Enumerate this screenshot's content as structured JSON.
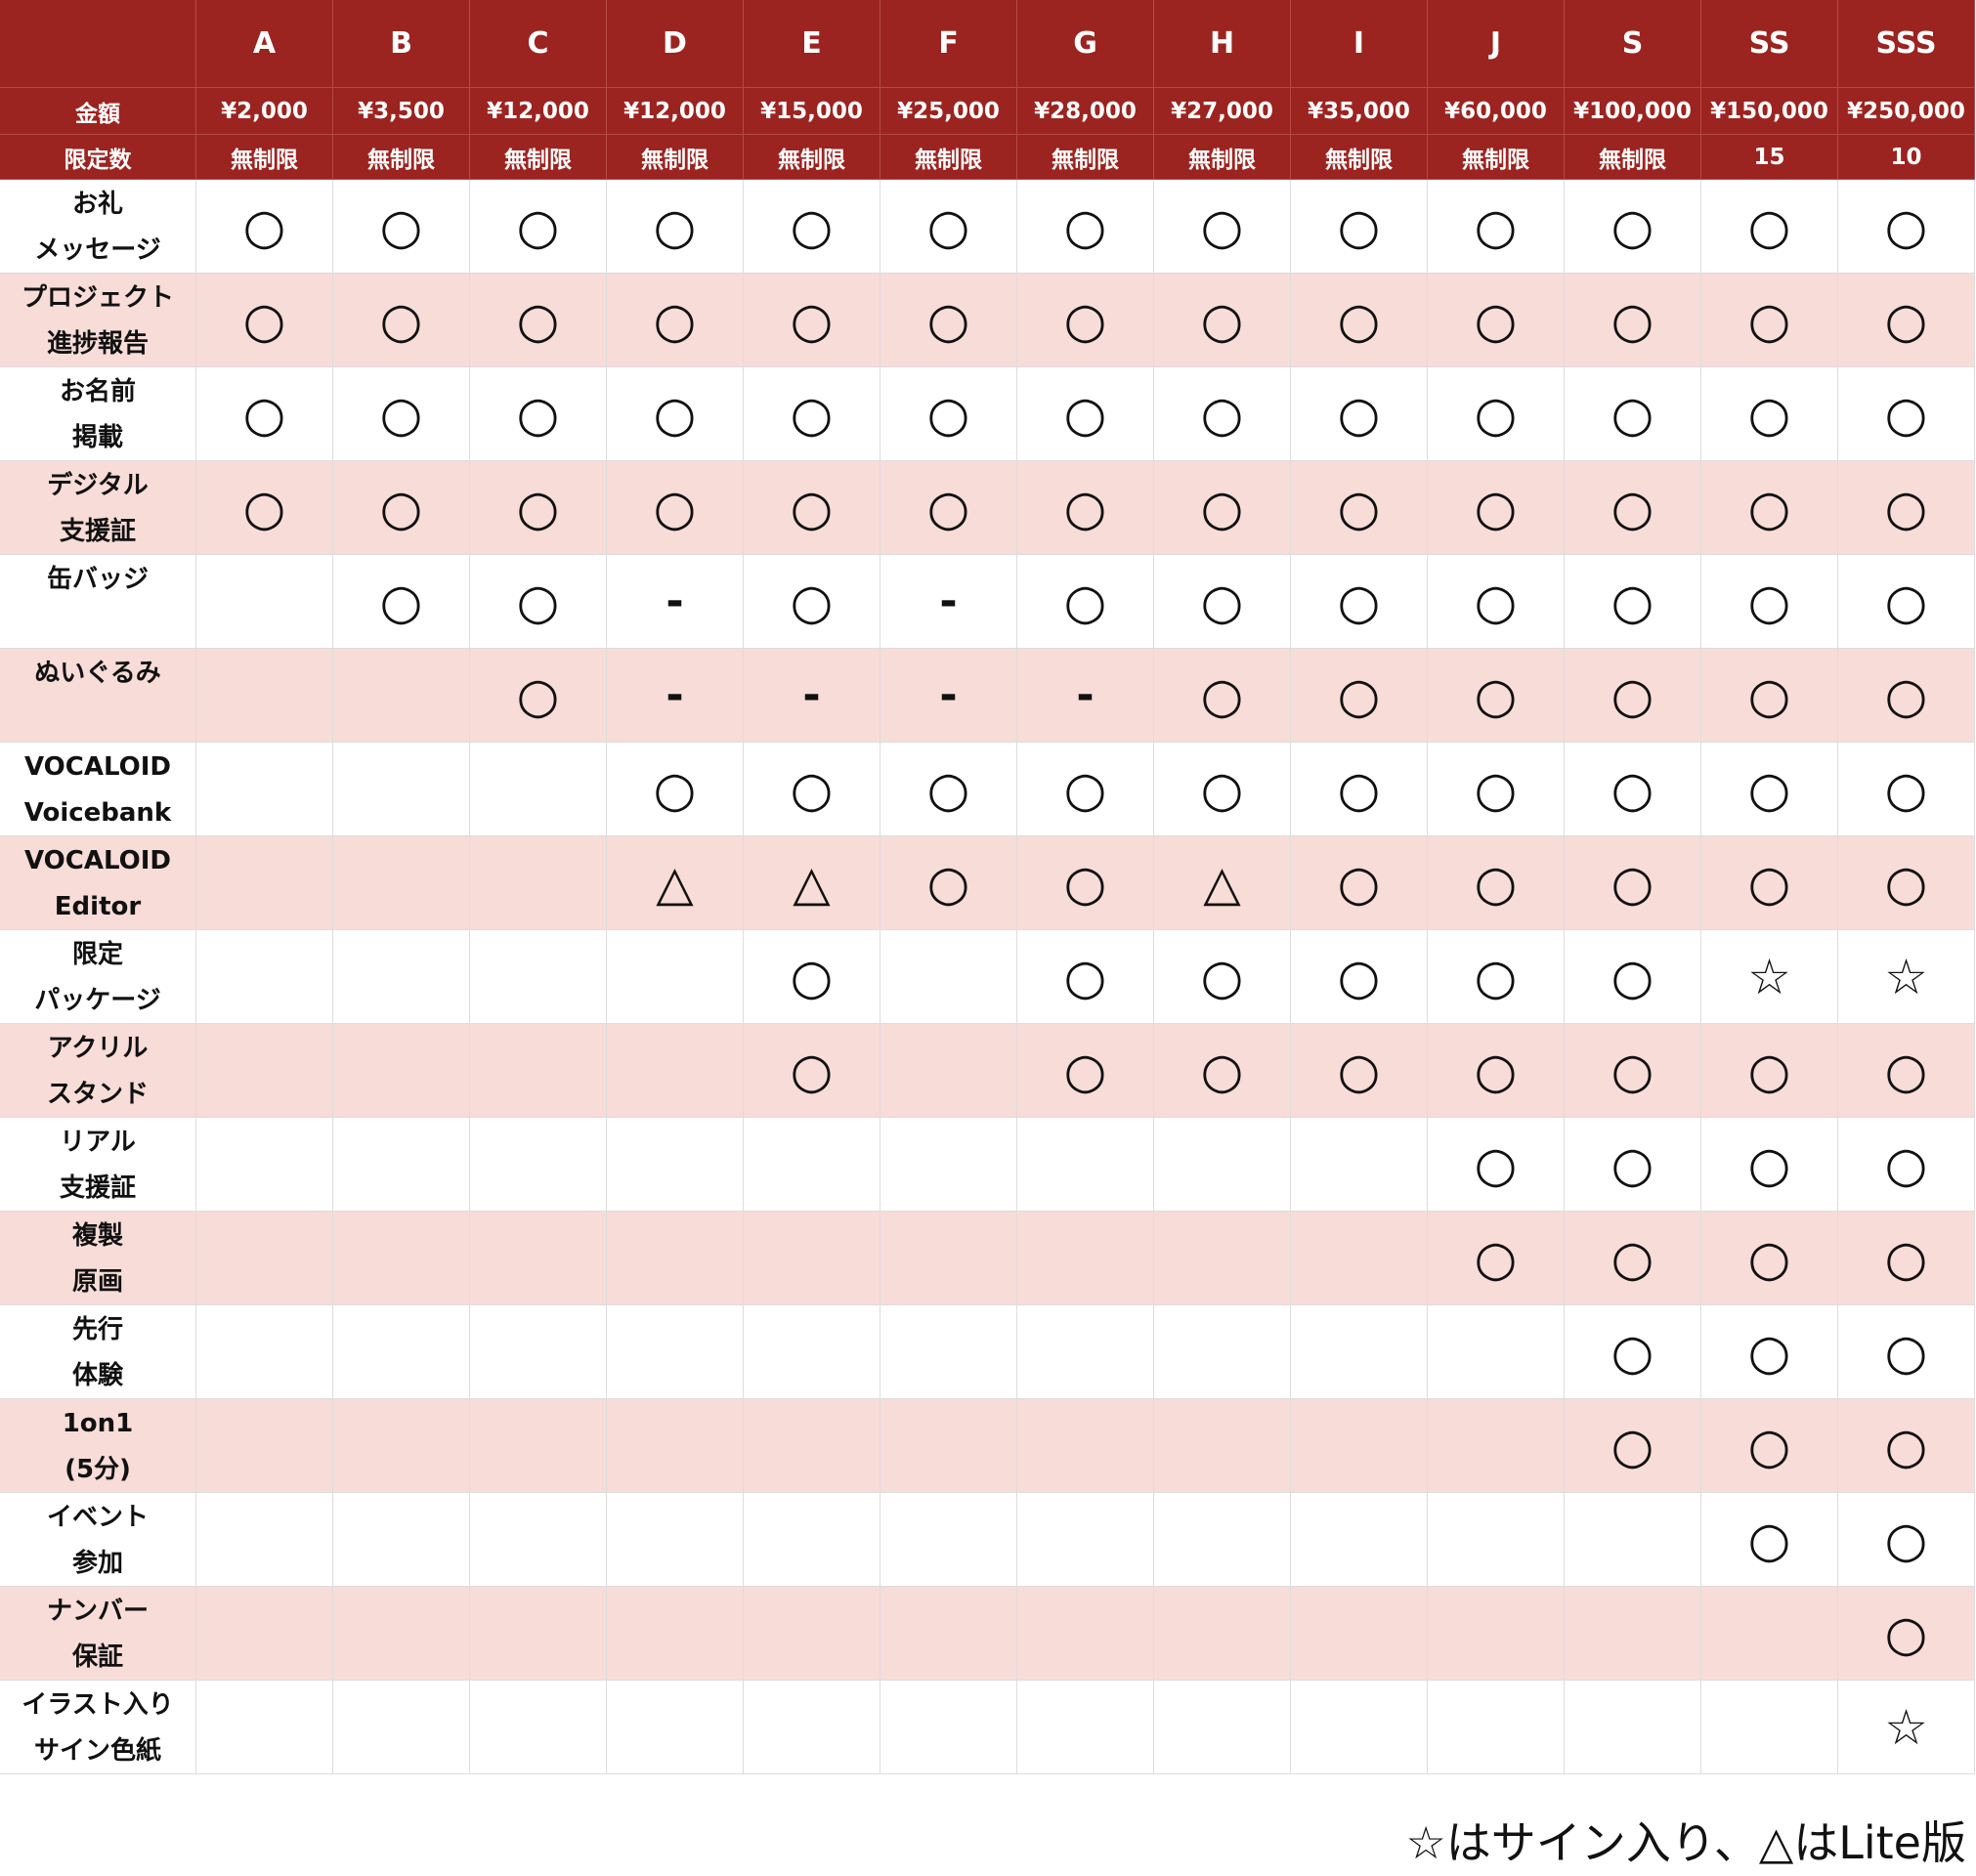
{
  "table": {
    "columns": [
      "A",
      "B",
      "C",
      "D",
      "E",
      "F",
      "G",
      "H",
      "I",
      "J",
      "S",
      "SS",
      "SSS"
    ],
    "price": {
      "label": "金額",
      "values": [
        "¥2,000",
        "¥3,500",
        "¥12,000",
        "¥12,000",
        "¥15,000",
        "¥25,000",
        "¥28,000",
        "¥27,000",
        "¥35,000",
        "¥60,000",
        "¥100,000",
        "¥150,000",
        "¥250,000"
      ]
    },
    "limit": {
      "label": "限定数",
      "values": [
        "無制限",
        "無制限",
        "無制限",
        "無制限",
        "無制限",
        "無制限",
        "無制限",
        "無制限",
        "無制限",
        "無制限",
        "無制限",
        "15",
        "10"
      ]
    },
    "rows": [
      {
        "label": [
          "お礼",
          "メッセージ"
        ],
        "cells": [
          "○",
          "○",
          "○",
          "○",
          "○",
          "○",
          "○",
          "○",
          "○",
          "○",
          "○",
          "○",
          "○"
        ]
      },
      {
        "label": [
          "プロジェクト",
          "進捗報告"
        ],
        "cells": [
          "○",
          "○",
          "○",
          "○",
          "○",
          "○",
          "○",
          "○",
          "○",
          "○",
          "○",
          "○",
          "○"
        ]
      },
      {
        "label": [
          "お名前",
          "掲載"
        ],
        "cells": [
          "○",
          "○",
          "○",
          "○",
          "○",
          "○",
          "○",
          "○",
          "○",
          "○",
          "○",
          "○",
          "○"
        ]
      },
      {
        "label": [
          "デジタル",
          "支援証"
        ],
        "cells": [
          "○",
          "○",
          "○",
          "○",
          "○",
          "○",
          "○",
          "○",
          "○",
          "○",
          "○",
          "○",
          "○"
        ]
      },
      {
        "label": [
          "缶バッジ"
        ],
        "cells": [
          null,
          "○",
          "○",
          "-",
          "○",
          "-",
          "○",
          "○",
          "○",
          "○",
          "○",
          "○",
          "○"
        ]
      },
      {
        "label": [
          "ぬいぐるみ"
        ],
        "cells": [
          null,
          null,
          "○",
          "-",
          "-",
          "-",
          "-",
          "○",
          "○",
          "○",
          "○",
          "○",
          "○"
        ]
      },
      {
        "label": [
          "VOCALOID",
          "Voicebank"
        ],
        "cells": [
          null,
          null,
          null,
          "○",
          "○",
          "○",
          "○",
          "○",
          "○",
          "○",
          "○",
          "○",
          "○"
        ]
      },
      {
        "label": [
          "VOCALOID",
          "Editor"
        ],
        "cells": [
          null,
          null,
          null,
          "△",
          "△",
          "○",
          "○",
          "△",
          "○",
          "○",
          "○",
          "○",
          "○"
        ]
      },
      {
        "label": [
          "限定",
          "パッケージ"
        ],
        "cells": [
          null,
          null,
          null,
          null,
          "○",
          null,
          "○",
          "○",
          "○",
          "○",
          "○",
          "☆",
          "☆"
        ]
      },
      {
        "label": [
          "アクリル",
          "スタンド"
        ],
        "cells": [
          null,
          null,
          null,
          null,
          "○",
          null,
          "○",
          "○",
          "○",
          "○",
          "○",
          "○",
          "○"
        ]
      },
      {
        "label": [
          "リアル",
          "支援証"
        ],
        "cells": [
          null,
          null,
          null,
          null,
          null,
          null,
          null,
          null,
          null,
          "○",
          "○",
          "○",
          "○"
        ]
      },
      {
        "label": [
          "複製",
          "原画"
        ],
        "cells": [
          null,
          null,
          null,
          null,
          null,
          null,
          null,
          null,
          null,
          "○",
          "○",
          "○",
          "○"
        ]
      },
      {
        "label": [
          "先行",
          "体験"
        ],
        "cells": [
          null,
          null,
          null,
          null,
          null,
          null,
          null,
          null,
          null,
          null,
          "○",
          "○",
          "○"
        ]
      },
      {
        "label": [
          "1on1",
          "(5分)"
        ],
        "cells": [
          null,
          null,
          null,
          null,
          null,
          null,
          null,
          null,
          null,
          null,
          "○",
          "○",
          "○"
        ]
      },
      {
        "label": [
          "イベント",
          "参加"
        ],
        "cells": [
          null,
          null,
          null,
          null,
          null,
          null,
          null,
          null,
          null,
          null,
          null,
          "○",
          "○"
        ]
      },
      {
        "label": [
          "ナンバー",
          "保証"
        ],
        "cells": [
          null,
          null,
          null,
          null,
          null,
          null,
          null,
          null,
          null,
          null,
          null,
          null,
          "○"
        ]
      },
      {
        "label": [
          "イラスト入り",
          "サイン色紙"
        ],
        "cells": [
          null,
          null,
          null,
          null,
          null,
          null,
          null,
          null,
          null,
          null,
          null,
          null,
          "☆"
        ]
      }
    ]
  },
  "note": "☆はサイン入り、△はLite版"
}
